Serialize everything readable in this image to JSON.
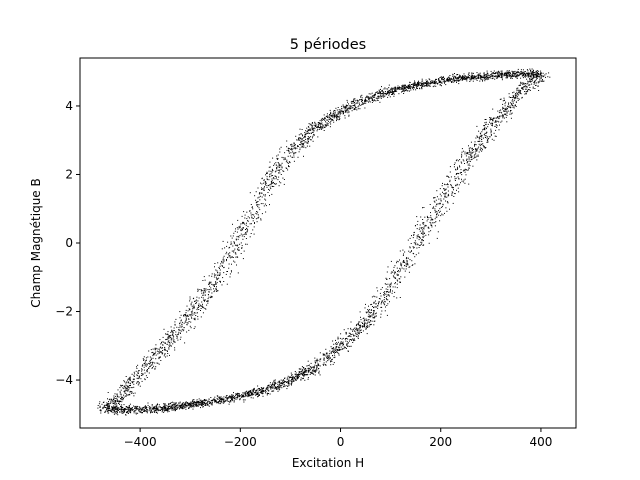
{
  "chart_data": {
    "type": "scatter",
    "title": "5 périodes",
    "xlabel": "Excitation H",
    "ylabel": "Champ Magnétique B",
    "xlim": [
      -520,
      470
    ],
    "ylim": [
      -5.4,
      5.4
    ],
    "xticks": [
      -400,
      -200,
      0,
      200,
      400
    ],
    "xtick_labels": [
      "−400",
      "−200",
      "0",
      "200",
      "400"
    ],
    "yticks": [
      -4,
      -2,
      0,
      2,
      4
    ],
    "ytick_labels": [
      "−4",
      "−2",
      "0",
      "2",
      "4"
    ],
    "grid": false,
    "marker_color": "#000000",
    "series": [
      {
        "branch": "upper",
        "x": [
          -470,
          -440,
          -400,
          -350,
          -300,
          -250,
          -200,
          -150,
          -100,
          -50,
          0,
          50,
          100,
          150,
          200,
          250,
          300,
          350,
          400
        ],
        "values": [
          -4.85,
          -4.45,
          -3.8,
          -3.0,
          -2.1,
          -1.1,
          0.2,
          1.6,
          2.7,
          3.4,
          3.85,
          4.2,
          4.45,
          4.62,
          4.75,
          4.85,
          4.9,
          4.95,
          4.95
        ]
      },
      {
        "branch": "lower",
        "x": [
          -470,
          -400,
          -350,
          -300,
          -250,
          -200,
          -150,
          -100,
          -50,
          0,
          50,
          100,
          150,
          200,
          250,
          300,
          350,
          400
        ],
        "values": [
          -4.85,
          -4.85,
          -4.8,
          -4.7,
          -4.6,
          -4.45,
          -4.3,
          -4.0,
          -3.6,
          -3.0,
          -2.3,
          -1.3,
          0.0,
          1.2,
          2.4,
          3.4,
          4.3,
          4.95
        ]
      }
    ]
  }
}
